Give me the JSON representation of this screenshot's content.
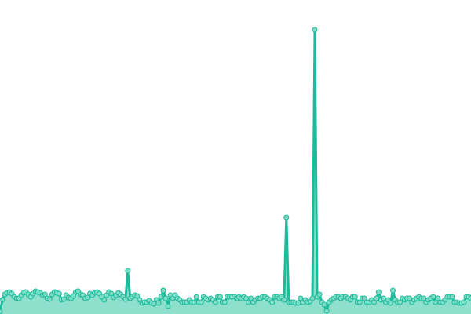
{
  "chart_data": {
    "type": "area",
    "title": "",
    "xlabel": "",
    "ylabel": "",
    "axes_visible": false,
    "grid": false,
    "legend": "none",
    "markers": true,
    "ylim": [
      0,
      370
    ],
    "colors": {
      "line": "#1abc9c",
      "fill": "#8ee0cc",
      "marker_fill": "#80dcc5",
      "marker_stroke": "#1abc9c"
    },
    "values": [
      3,
      18,
      25,
      27,
      28,
      26,
      22,
      20,
      20,
      24,
      27,
      28,
      25,
      22,
      26,
      29,
      28,
      27,
      24,
      25,
      20,
      19,
      25,
      28,
      27,
      26,
      18,
      19,
      24,
      21,
      20,
      23,
      28,
      29,
      25,
      24,
      20,
      21,
      26,
      24,
      27,
      28,
      26,
      22,
      18,
      24,
      28,
      26,
      21,
      24,
      27,
      25,
      22,
      19,
      55,
      20,
      22,
      24,
      23,
      18,
      14,
      15,
      15,
      17,
      14,
      13,
      18,
      14,
      22,
      30,
      20,
      10,
      24,
      20,
      24,
      20,
      18,
      15,
      15,
      15,
      18,
      15,
      15,
      22,
      15,
      15,
      22,
      20,
      18,
      20,
      18,
      15,
      22,
      22,
      15,
      15,
      22,
      22,
      22,
      22,
      20,
      22,
      20,
      22,
      20,
      15,
      20,
      15,
      18,
      20,
      20,
      22,
      22,
      20,
      18,
      15,
      22,
      22,
      20,
      22,
      18,
      123,
      15,
      15,
      15,
      14,
      14,
      20,
      15,
      18,
      15,
      16,
      20,
      362,
      22,
      25,
      15,
      12,
      4,
      15,
      18,
      20,
      22,
      22,
      20,
      22,
      22,
      20,
      18,
      22,
      22,
      15,
      15,
      20,
      20,
      15,
      15,
      18,
      15,
      20,
      28,
      18,
      20,
      15,
      18,
      14,
      30,
      18,
      15,
      15,
      20,
      18,
      20,
      20,
      15,
      18,
      20,
      22,
      20,
      20,
      15,
      18,
      20,
      22,
      15,
      20,
      15,
      15,
      18,
      22,
      22,
      22,
      15,
      15,
      14,
      14,
      15,
      22,
      22,
      20
    ]
  }
}
